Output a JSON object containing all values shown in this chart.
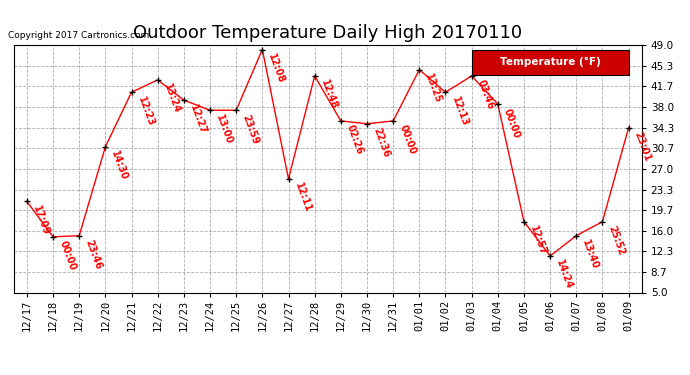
{
  "title": "Outdoor Temperature Daily High 20170110",
  "copyright": "Copyright 2017 Cartronics.com",
  "legend_label": "Temperature (°F)",
  "x_labels": [
    "12/17",
    "12/18",
    "12/19",
    "12/20",
    "12/21",
    "12/22",
    "12/23",
    "12/24",
    "12/25",
    "12/26",
    "12/27",
    "12/28",
    "12/29",
    "12/30",
    "12/31",
    "01/01",
    "01/02",
    "01/03",
    "01/04",
    "01/05",
    "01/06",
    "01/07",
    "01/08",
    "01/09"
  ],
  "y_values": [
    21.2,
    14.9,
    15.1,
    30.9,
    40.6,
    42.8,
    39.2,
    37.4,
    37.4,
    48.2,
    25.2,
    43.5,
    35.5,
    35.0,
    35.5,
    44.6,
    40.6,
    43.5,
    38.5,
    17.6,
    11.5,
    15.1,
    17.6,
    34.3
  ],
  "time_labels": [
    "17:09",
    "00:00",
    "23:46",
    "14:30",
    "12:23",
    "13:24",
    "12:27",
    "13:00",
    "23:59",
    "12:08",
    "12:11",
    "12:48",
    "02:26",
    "22:36",
    "00:00",
    "13:25",
    "12:13",
    "03:46",
    "00:00",
    "12:57",
    "14:24",
    "13:40",
    "25:52",
    "23:01"
  ],
  "line_color": "#ff0000",
  "marker_color": "#000000",
  "background_color": "#ffffff",
  "grid_color": "#999999",
  "title_fontsize": 13,
  "tick_fontsize": 7.5,
  "time_fontsize": 7,
  "ylim": [
    5.0,
    49.0
  ],
  "yticks": [
    5.0,
    8.7,
    12.3,
    16.0,
    19.7,
    23.3,
    27.0,
    30.7,
    34.3,
    38.0,
    41.7,
    45.3,
    49.0
  ]
}
